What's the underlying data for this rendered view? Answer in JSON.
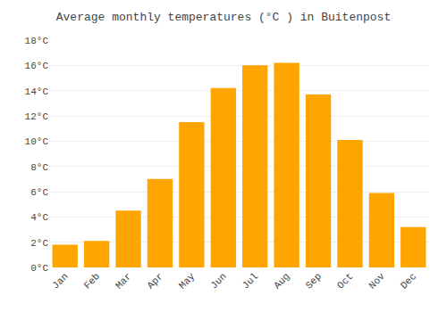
{
  "chart_data": {
    "type": "bar",
    "title": "Average monthly temperatures (°C ) in Buitenpost",
    "categories": [
      "Jan",
      "Feb",
      "Mar",
      "Apr",
      "May",
      "Jun",
      "Jul",
      "Aug",
      "Sep",
      "Oct",
      "Nov",
      "Dec"
    ],
    "values": [
      1.8,
      2.1,
      4.5,
      7.0,
      11.5,
      14.2,
      16.0,
      16.2,
      13.7,
      10.1,
      5.9,
      3.2
    ],
    "color": "#FFA500",
    "ylim": [
      0,
      18
    ],
    "yticks": [
      {
        "value": 0,
        "label": "0°C"
      },
      {
        "value": 2,
        "label": "2°C"
      },
      {
        "value": 4,
        "label": "4°C"
      },
      {
        "value": 6,
        "label": "6°C"
      },
      {
        "value": 8,
        "label": "8°C"
      },
      {
        "value": 10,
        "label": "10°C"
      },
      {
        "value": 12,
        "label": "12°C"
      },
      {
        "value": 14,
        "label": "14°C"
      },
      {
        "value": 16,
        "label": "16°C"
      },
      {
        "value": 18,
        "label": "18°C"
      }
    ],
    "grid": true
  }
}
